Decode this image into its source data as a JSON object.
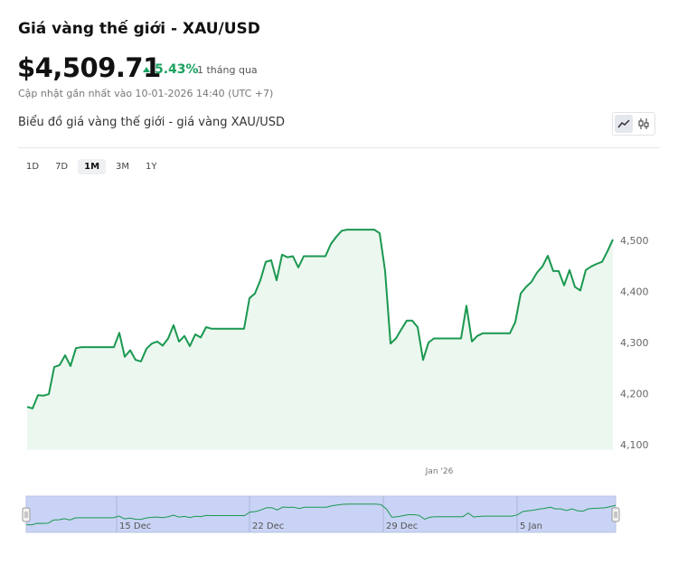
{
  "header": {
    "title": "Giá vàng thế giới - XAU/USD",
    "price": "$4,509.71",
    "change": "5.43%",
    "period": "1 tháng qua",
    "updated": "Cập nhật gần nhất vào 10-01-2026 14:40 (UTC +7)",
    "subtitle": "Biểu đồ giá vàng thế giới - giá vàng XAU/USD",
    "ranges": [
      "1D",
      "7D",
      "1M",
      "3M",
      "1Y"
    ],
    "active_range": "1M"
  },
  "chart_data": {
    "type": "line",
    "categories": [
      null,
      null,
      null,
      null,
      null,
      null,
      null,
      null,
      null,
      null,
      null,
      null,
      null,
      null,
      null,
      null,
      null,
      null,
      null,
      null,
      null,
      null,
      null,
      null,
      null,
      null,
      null,
      null,
      null,
      null,
      null,
      null,
      null,
      null,
      null,
      null,
      null,
      null,
      null,
      null,
      null,
      null,
      null,
      null,
      null,
      null,
      null,
      null,
      null,
      null,
      null,
      null,
      null,
      null,
      null,
      null,
      null,
      null,
      null,
      null,
      null,
      null,
      null,
      null,
      null,
      null,
      null,
      null,
      null,
      null,
      null,
      null,
      null,
      null,
      null,
      null,
      "Jan '26",
      null,
      null,
      null,
      null,
      null,
      null,
      null,
      null,
      null,
      null,
      null,
      null,
      null,
      null,
      null,
      null,
      null,
      null,
      null,
      null,
      null,
      null,
      null,
      null,
      null,
      null,
      null,
      null,
      null,
      null,
      null,
      null
    ],
    "series": [
      {
        "name": "XAU/USD",
        "color": "#1a9850",
        "values": [
          4174,
          4171,
          4197,
          4196,
          4199,
          4252,
          4256,
          4275,
          4254,
          4289,
          4291,
          4291,
          4291,
          4291,
          4291,
          4291,
          4291,
          4319,
          4272,
          4285,
          4266,
          4263,
          4288,
          4298,
          4302,
          4294,
          4308,
          4334,
          4302,
          4313,
          4293,
          4316,
          4310,
          4330,
          4327,
          4327,
          4327,
          4327,
          4327,
          4327,
          4327,
          4387,
          4396,
          4422,
          4458,
          4461,
          4422,
          4472,
          4467,
          4469,
          4447,
          4469,
          4469,
          4469,
          4469,
          4469,
          4493,
          4507,
          4519,
          4521,
          4521,
          4521,
          4521,
          4521,
          4521,
          4514,
          4440,
          4298,
          4308,
          4326,
          4343,
          4343,
          4330,
          4266,
          4300,
          4308,
          4308,
          4308,
          4308,
          4308,
          4308,
          4372,
          4302,
          4313,
          4318,
          4318,
          4318,
          4318,
          4318,
          4318,
          4340,
          4396,
          4409,
          4419,
          4437,
          4449,
          4470,
          4440,
          4440,
          4412,
          4442,
          4409,
          4402,
          4442,
          4449,
          4454,
          4458,
          4479,
          4502
        ]
      }
    ],
    "area_color": "#ebf7ef",
    "ylim": [
      4090,
      4610
    ],
    "yticks": [
      {
        "value": 4100,
        "label": "4,100"
      },
      {
        "value": 4200,
        "label": "4,200"
      },
      {
        "value": 4300,
        "label": "4,300"
      },
      {
        "value": 4400,
        "label": "4,400"
      },
      {
        "value": 4500,
        "label": "4,500"
      }
    ],
    "grid": false,
    "navigator": {
      "labels": [
        "15 Dec",
        "22 Dec",
        "29 Dec",
        "5 Jan"
      ],
      "color": "#c9d3f5"
    }
  }
}
